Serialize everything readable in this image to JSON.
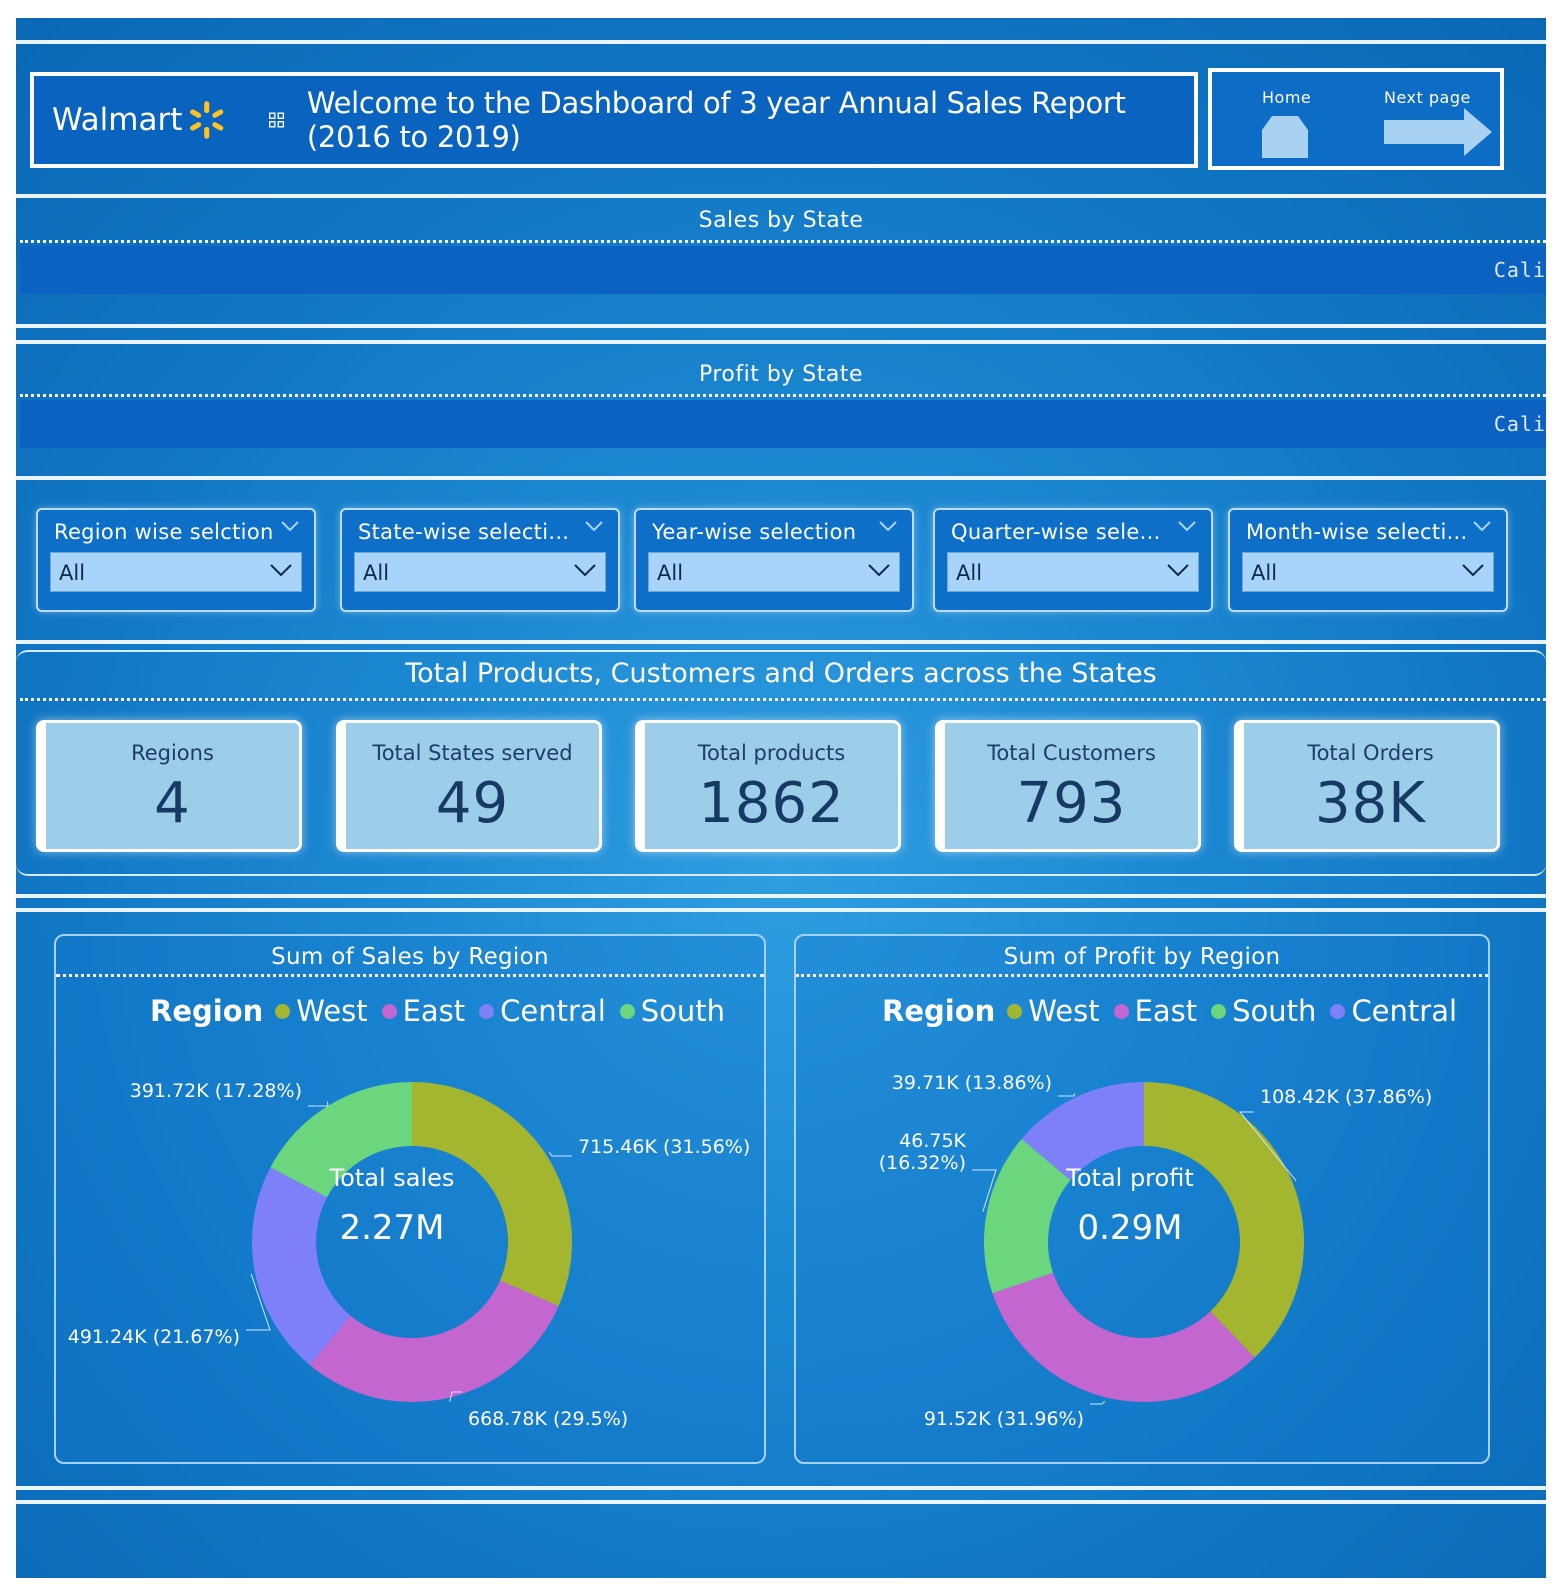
{
  "header": {
    "logo_text": "Walmart",
    "title": "Welcome to the Dashboard of 3 year Annual Sales Report (2016 to 2019)",
    "nav": {
      "home_label": "Home",
      "next_label": "Next page"
    }
  },
  "sales_by_state": {
    "title": "Sales by State",
    "ticker_text": "Cali"
  },
  "profit_by_state": {
    "title": "Profit by State",
    "ticker_text": "Cali"
  },
  "slicers": [
    {
      "title": "Region wise selction",
      "value": "All"
    },
    {
      "title": "State-wise selecti...",
      "value": "All"
    },
    {
      "title": "Year-wise selection",
      "value": "All"
    },
    {
      "title": "Quarter-wise sele...",
      "value": "All"
    },
    {
      "title": "Month-wise selecti...",
      "value": "All"
    }
  ],
  "kpis": {
    "title": "Total Products, Customers and Orders across the States",
    "cards": [
      {
        "label": "Regions",
        "value": "4"
      },
      {
        "label": "Total States served",
        "value": "49"
      },
      {
        "label": "Total products",
        "value": "1862"
      },
      {
        "label": "Total Customers",
        "value": "793"
      },
      {
        "label": "Total Orders",
        "value": "38K"
      }
    ]
  },
  "colors": {
    "West": "#a4b62f",
    "East": "#c366cf",
    "Central": "#7e80fa",
    "South": "#6bd67d",
    "background": "#1a84cf"
  },
  "chart_data": [
    {
      "type": "pie",
      "title": "Sum of Sales by Region",
      "legend_title": "Region",
      "legend_order": [
        "West",
        "East",
        "Central",
        "South"
      ],
      "center_label": "Total sales",
      "center_value": "2.27M",
      "slices": [
        {
          "name": "West",
          "value": 715.46,
          "label": "715.46K (31.56%)"
        },
        {
          "name": "East",
          "value": 668.78,
          "label": "668.78K (29.5%)"
        },
        {
          "name": "Central",
          "value": 491.24,
          "label": "491.24K (21.67%)"
        },
        {
          "name": "South",
          "value": 391.72,
          "label": "391.72K (17.28%)"
        }
      ]
    },
    {
      "type": "pie",
      "title": "Sum of Profit by Region",
      "legend_title": "Region",
      "legend_order": [
        "West",
        "East",
        "South",
        "Central"
      ],
      "center_label": "Total profit",
      "center_value": "0.29M",
      "slices": [
        {
          "name": "West",
          "value": 108.42,
          "label": "108.42K (37.86%)"
        },
        {
          "name": "East",
          "value": 91.52,
          "label": "91.52K (31.96%)"
        },
        {
          "name": "South",
          "value": 46.75,
          "label": "46.75K\n(16.32%)"
        },
        {
          "name": "Central",
          "value": 39.71,
          "label": "39.71K (13.86%)"
        }
      ]
    }
  ]
}
